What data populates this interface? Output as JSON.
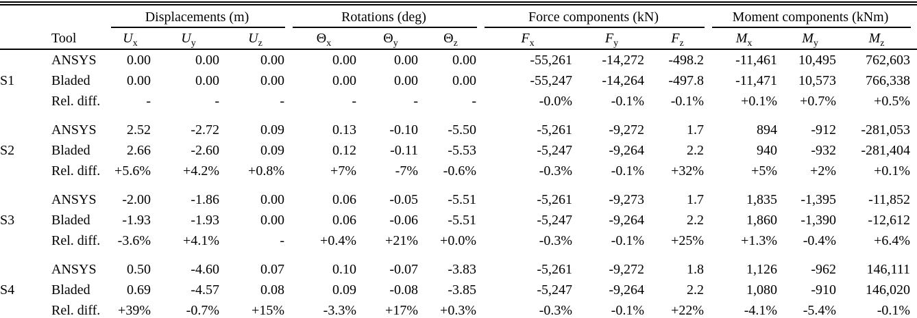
{
  "table": {
    "tool_header": "Tool",
    "groups": [
      {
        "label": "Displacements (m)"
      },
      {
        "label": "Rotations (deg)"
      },
      {
        "label": "Force components (kN)"
      },
      {
        "label": "Moment components (kNm)"
      }
    ],
    "subheaders": [
      {
        "base": "U",
        "sub": "x"
      },
      {
        "base": "U",
        "sub": "y"
      },
      {
        "base": "U",
        "sub": "z"
      },
      {
        "base": "Θ",
        "sub": "x"
      },
      {
        "base": "Θ",
        "sub": "y"
      },
      {
        "base": "Θ",
        "sub": "z"
      },
      {
        "base": "F",
        "sub": "x"
      },
      {
        "base": "F",
        "sub": "y"
      },
      {
        "base": "F",
        "sub": "z"
      },
      {
        "base": "M",
        "sub": "x"
      },
      {
        "base": "M",
        "sub": "y"
      },
      {
        "base": "M",
        "sub": "z"
      }
    ],
    "sections": [
      {
        "label": "S1",
        "rows": [
          {
            "tool": "ANSYS",
            "values": [
              "0.00",
              "0.00",
              "0.00",
              "0.00",
              "0.00",
              "0.00",
              "-55,261",
              "-14,272",
              "-498.2",
              "-11,461",
              "10,495",
              "762,603"
            ]
          },
          {
            "tool": "Bladed",
            "values": [
              "0.00",
              "0.00",
              "0.00",
              "0.00",
              "0.00",
              "0.00",
              "-55,247",
              "-14,264",
              "-497.8",
              "-11,471",
              "10,573",
              "766,338"
            ]
          },
          {
            "tool": "Rel. diff.",
            "values": [
              "-",
              "-",
              "-",
              "-",
              "-",
              "-",
              "-0.0%",
              "-0.1%",
              "-0.1%",
              "+0.1%",
              "+0.7%",
              "+0.5%"
            ]
          }
        ]
      },
      {
        "label": "S2",
        "rows": [
          {
            "tool": "ANSYS",
            "values": [
              "2.52",
              "-2.72",
              "0.09",
              "0.13",
              "-0.10",
              "-5.50",
              "-5,261",
              "-9,272",
              "1.7",
              "894",
              "-912",
              "-281,053"
            ]
          },
          {
            "tool": "Bladed",
            "values": [
              "2.66",
              "-2.60",
              "0.09",
              "0.12",
              "-0.11",
              "-5.53",
              "-5,247",
              "-9,264",
              "2.2",
              "940",
              "-932",
              "-281,404"
            ]
          },
          {
            "tool": "Rel. diff.",
            "values": [
              "+5.6%",
              "+4.2%",
              "+0.8%",
              "+7%",
              "-7%",
              "-0.6%",
              "-0.3%",
              "-0.1%",
              "+32%",
              "+5%",
              "+2%",
              "+0.1%"
            ]
          }
        ]
      },
      {
        "label": "S3",
        "rows": [
          {
            "tool": "ANSYS",
            "values": [
              "-2.00",
              "-1.86",
              "0.00",
              "0.06",
              "-0.05",
              "-5.51",
              "-5,261",
              "-9,273",
              "1.7",
              "1,835",
              "-1,395",
              "-11,852"
            ]
          },
          {
            "tool": "Bladed",
            "values": [
              "-1.93",
              "-1.93",
              "0.00",
              "0.06",
              "-0.06",
              "-5.51",
              "-5,247",
              "-9,264",
              "2.2",
              "1,860",
              "-1,390",
              "-12,612"
            ]
          },
          {
            "tool": "Rel. diff.",
            "values": [
              "-3.6%",
              "+4.1%",
              "-",
              "+0.4%",
              "+21%",
              "+0.0%",
              "-0.3%",
              "-0.1%",
              "+25%",
              "+1.3%",
              "-0.4%",
              "+6.4%"
            ]
          }
        ]
      },
      {
        "label": "S4",
        "rows": [
          {
            "tool": "ANSYS",
            "values": [
              "0.50",
              "-4.60",
              "0.07",
              "0.10",
              "-0.07",
              "-3.83",
              "-5,261",
              "-9,272",
              "1.8",
              "1,126",
              "-962",
              "146,111"
            ]
          },
          {
            "tool": "Bladed",
            "values": [
              "0.69",
              "-4.57",
              "0.08",
              "0.09",
              "-0.08",
              "-3.85",
              "-5,247",
              "-9,264",
              "2.2",
              "1,080",
              "-910",
              "146,020"
            ]
          },
          {
            "tool": "Rel. diff.",
            "values": [
              "+39%",
              "-0.7%",
              "+15%",
              "-3.3%",
              "+17%",
              "+0.3%",
              "-0.3%",
              "-0.1%",
              "+22%",
              "-4.1%",
              "-5.4%",
              "-0.1%"
            ]
          }
        ]
      }
    ]
  }
}
